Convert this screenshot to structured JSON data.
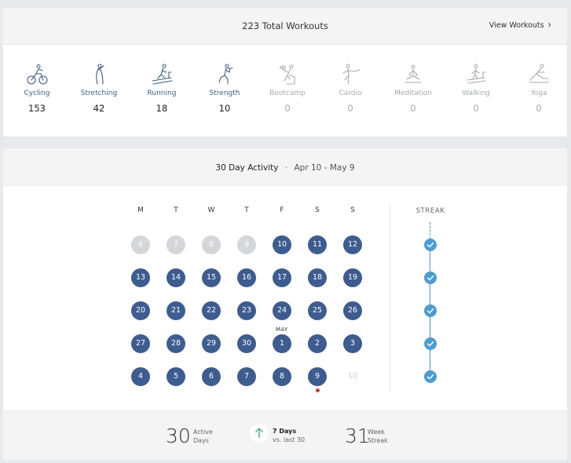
{
  "summary": {
    "total_count": "223",
    "total_label": "Total Workouts",
    "view_link": "View Workouts"
  },
  "workout_types": [
    {
      "label": "Cycling",
      "count": "153",
      "icon": "cycling-icon",
      "active": true
    },
    {
      "label": "Stretching",
      "count": "42",
      "icon": "stretching-icon",
      "active": true
    },
    {
      "label": "Running",
      "count": "18",
      "icon": "running-icon",
      "active": true
    },
    {
      "label": "Strength",
      "count": "10",
      "icon": "strength-icon",
      "active": true
    },
    {
      "label": "Bootcamp",
      "count": "0",
      "icon": "bootcamp-icon",
      "active": false
    },
    {
      "label": "Cardio",
      "count": "0",
      "icon": "cardio-icon",
      "active": false
    },
    {
      "label": "Meditation",
      "count": "0",
      "icon": "meditation-icon",
      "active": false
    },
    {
      "label": "Walking",
      "count": "0",
      "icon": "walking-icon",
      "active": false
    },
    {
      "label": "Yoga",
      "count": "0",
      "icon": "yoga-icon",
      "active": false
    }
  ],
  "activity": {
    "title": "30 Day Activity",
    "separator": "·",
    "range": "Apr 10 - May 9",
    "weekdays": [
      "M",
      "T",
      "W",
      "T",
      "F",
      "S",
      "S"
    ],
    "streak_title": "STREAK",
    "month_marker": "MAY",
    "weeks": [
      [
        {
          "d": "6",
          "s": "past"
        },
        {
          "d": "7",
          "s": "past"
        },
        {
          "d": "8",
          "s": "past"
        },
        {
          "d": "9",
          "s": "past"
        },
        {
          "d": "10",
          "s": "done"
        },
        {
          "d": "11",
          "s": "done"
        },
        {
          "d": "12",
          "s": "done"
        }
      ],
      [
        {
          "d": "13",
          "s": "done"
        },
        {
          "d": "14",
          "s": "done"
        },
        {
          "d": "15",
          "s": "done"
        },
        {
          "d": "16",
          "s": "done"
        },
        {
          "d": "17",
          "s": "done"
        },
        {
          "d": "18",
          "s": "done"
        },
        {
          "d": "19",
          "s": "done"
        }
      ],
      [
        {
          "d": "20",
          "s": "done"
        },
        {
          "d": "21",
          "s": "done"
        },
        {
          "d": "22",
          "s": "done"
        },
        {
          "d": "23",
          "s": "done"
        },
        {
          "d": "24",
          "s": "done"
        },
        {
          "d": "25",
          "s": "done"
        },
        {
          "d": "26",
          "s": "done"
        }
      ],
      [
        {
          "d": "27",
          "s": "done"
        },
        {
          "d": "28",
          "s": "done"
        },
        {
          "d": "29",
          "s": "done"
        },
        {
          "d": "30",
          "s": "done"
        },
        {
          "d": "1",
          "s": "done",
          "month": true
        },
        {
          "d": "2",
          "s": "done"
        },
        {
          "d": "3",
          "s": "done"
        }
      ],
      [
        {
          "d": "4",
          "s": "done"
        },
        {
          "d": "5",
          "s": "done"
        },
        {
          "d": "6",
          "s": "done"
        },
        {
          "d": "7",
          "s": "done"
        },
        {
          "d": "8",
          "s": "done"
        },
        {
          "d": "9",
          "s": "done",
          "today": true
        },
        {
          "d": "10",
          "s": "future"
        }
      ]
    ],
    "streak_weeks": 5
  },
  "footer": {
    "active_days_value": "30",
    "active_days_label1": "Active",
    "active_days_label2": "Days",
    "delta_value": "7 Days",
    "delta_label": "vs. last 30",
    "week_streak_value": "31",
    "week_streak_label1": "Week",
    "week_streak_label2": "Streak"
  },
  "colors": {
    "done": "#3d5c8f",
    "past": "#d5d6d9",
    "streak": "#4a9dd4",
    "today": "#e8343a",
    "up_arrow": "#4cb88a",
    "active_label": "#3a5f93",
    "inactive": "#a5a9ae"
  }
}
